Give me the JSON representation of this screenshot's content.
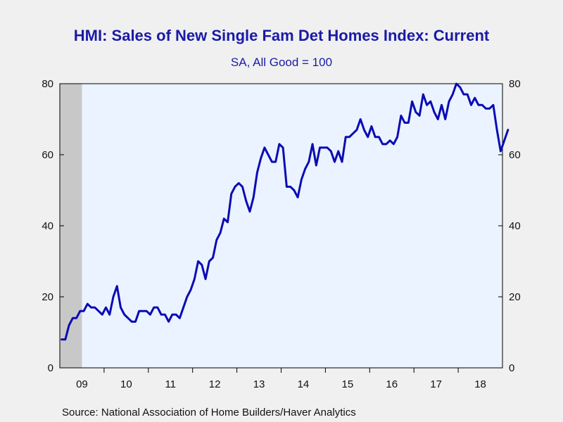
{
  "chart_data": {
    "type": "line",
    "title": "HMI: Sales of New Single Fam Det Homes Index: Current",
    "subtitle": "SA, All Good = 100",
    "source": "Source:  National Association of Home Builders/Haver Analytics",
    "ylim": [
      0,
      80
    ],
    "y_ticks": [
      0,
      20,
      40,
      60,
      80
    ],
    "x_tick_labels": [
      "09",
      "10",
      "11",
      "12",
      "13",
      "14",
      "15",
      "16",
      "17",
      "18"
    ],
    "x_start": "2009-01",
    "x_end": "2018-12",
    "colors": {
      "line": "#0b0bb3",
      "plot_bg": "#eaf3ff",
      "recession": "#c8c8c8",
      "title": "#1a1aa8"
    },
    "recession_shading": [
      "2009-01",
      "2009-06"
    ],
    "series": [
      {
        "values": [
          8,
          8,
          12,
          14,
          14,
          16,
          16,
          18,
          17,
          17,
          16,
          15,
          17,
          15,
          20,
          23,
          17,
          15,
          14,
          13,
          13,
          16,
          16,
          16,
          15,
          17,
          17,
          15,
          15,
          13,
          15,
          15,
          14,
          17,
          20,
          22,
          25,
          30,
          29,
          25,
          30,
          31,
          36,
          38,
          42,
          41,
          49,
          51,
          52,
          51,
          47,
          44,
          48,
          55,
          59,
          62,
          60,
          58,
          58,
          63,
          62,
          51,
          51,
          50,
          48,
          53,
          56,
          58,
          63,
          57,
          62,
          62,
          62,
          61,
          58,
          61,
          58,
          65,
          65,
          66,
          67,
          70,
          67,
          65,
          68,
          65,
          65,
          63,
          63,
          64,
          63,
          65,
          71,
          69,
          69,
          75,
          72,
          71,
          77,
          74,
          75,
          72,
          70,
          74,
          70,
          75,
          77,
          80,
          79,
          77,
          77,
          74,
          76,
          74,
          74,
          73,
          73,
          74,
          67,
          61,
          64,
          67
        ]
      }
    ]
  }
}
